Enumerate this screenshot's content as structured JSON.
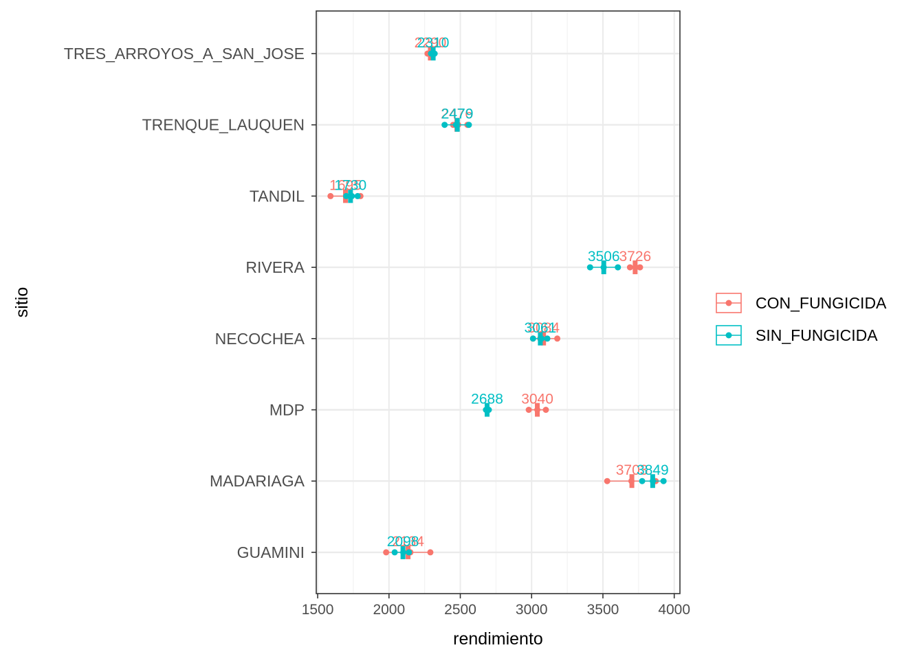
{
  "chart_data": {
    "type": "scatter",
    "orientation": "horizontal",
    "xlabel": "rendimiento",
    "ylabel": "sitio",
    "xlim": [
      1490,
      4040
    ],
    "xticks": [
      1500,
      2000,
      2500,
      3000,
      3500,
      4000
    ],
    "x_minor_ticks": [
      1750,
      2250,
      2750,
      3250,
      3750
    ],
    "grid": true,
    "legend_position": "right",
    "categories": [
      "TRES_ARROYOS_A_SAN_JOSE",
      "TRENQUE_LAUQUEN",
      "TANDIL",
      "RIVERA",
      "NECOCHEA",
      "MDP",
      "MADARIAGA",
      "GUAMINI"
    ],
    "series": [
      {
        "name": "CON_FUNGICIDA",
        "color": "#F8766D",
        "offset": -0.3,
        "points": [
          [
            2270,
            2285,
            2300
          ],
          [
            2450,
            2485,
            2550
          ],
          [
            1590,
            1700,
            1800
          ],
          [
            3690,
            3730,
            3760
          ],
          [
            3010,
            3060,
            3180
          ],
          [
            2980,
            3040,
            3100
          ],
          [
            3530,
            3700,
            3870
          ],
          [
            1980,
            2150,
            2290
          ]
        ],
        "means": [
          2290,
          2476,
          1695,
          3726,
          3084,
          3040,
          3703,
          2134
        ],
        "labels": [
          "2290",
          "2476",
          "1695",
          "3726",
          "3084",
          "3040",
          "3703",
          "2134"
        ]
      },
      {
        "name": "SIN_FUNGICIDA",
        "color": "#00BFC4",
        "offset": 0.3,
        "points": [
          [
            2295,
            2305,
            2320
          ],
          [
            2390,
            2470,
            2560
          ],
          [
            1700,
            1740,
            1780
          ],
          [
            3410,
            3505,
            3605
          ],
          [
            3010,
            3070,
            3110
          ],
          [
            2680,
            2690,
            2700
          ],
          [
            3775,
            3850,
            3925
          ],
          [
            2040,
            2100,
            2140
          ]
        ],
        "means": [
          2310,
          2479,
          1730,
          3506,
          3061,
          2688,
          3849,
          2098
        ],
        "labels": [
          "2310",
          "2479",
          "1730",
          "3506",
          "3061",
          "2688",
          "3849",
          "2098"
        ]
      }
    ]
  }
}
